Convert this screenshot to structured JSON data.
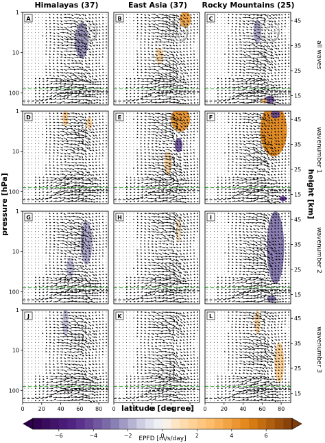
{
  "chart_data": {
    "type": "vector-field-with-contours",
    "columns": [
      "Himalayas (37)",
      "East Asia (37)",
      "Rocky Mountains (25)"
    ],
    "rows": [
      "all waves",
      "wavenumber 1",
      "wavenumber 2",
      "wavenumber 3"
    ],
    "panel_letters": [
      [
        "A",
        "B",
        "C"
      ],
      [
        "D",
        "E",
        "F"
      ],
      [
        "G",
        "H",
        "I"
      ],
      [
        "J",
        "K",
        "L"
      ]
    ],
    "ylabel": "pressure [hPa]",
    "ylabel_right": "height [km]",
    "xlabel": "latitude [degree]",
    "y_scale": "log",
    "ylim_hPa": [
      200,
      1
    ],
    "xlim_deg": [
      0,
      90
    ],
    "x_ticks": [
      "0",
      "20",
      "40",
      "60",
      "80"
    ],
    "y_ticks": [
      "1",
      "10",
      "100"
    ],
    "height_ticks": [
      "45",
      "35",
      "25",
      "15"
    ],
    "colorbar": {
      "label": "EPFD [m/s/day]",
      "range": [
        -7.5,
        7.5
      ],
      "ticks": [
        "−6",
        "−4",
        "−2",
        "0",
        "2",
        "4",
        "6"
      ],
      "colormap": "PuOr_r",
      "negative_color": "#3b0f70",
      "positive_color": "#7f3b08"
    },
    "tropopause_hPa": 80,
    "tropopause_line_color": "#2ca02c",
    "blobs": [
      [
        [
          {
            "lat": 62,
            "p": 5,
            "v": -2.5,
            "rlat": 7,
            "rlogp": 0.45
          }
        ],
        [
          {
            "lat": 48,
            "p": 12,
            "v": 1.5,
            "rlat": 4,
            "rlogp": 0.2
          },
          {
            "lat": 75,
            "p": 1.5,
            "v": 4,
            "rlat": 6,
            "rlogp": 0.2
          }
        ],
        [
          {
            "lat": 55,
            "p": 3,
            "v": -2,
            "rlat": 4,
            "rlogp": 0.3
          },
          {
            "lat": 68,
            "p": 150,
            "v": -4,
            "rlat": 5,
            "rlogp": 0.1
          },
          {
            "lat": 62,
            "p": 160,
            "v": 3,
            "rlat": 3,
            "rlogp": 0.06
          }
        ]
      ],
      [
        [
          {
            "lat": 45,
            "p": 1.5,
            "v": 2,
            "rlat": 3,
            "rlogp": 0.2
          },
          {
            "lat": 70,
            "p": 2,
            "v": 1.5,
            "rlat": 3,
            "rlogp": 0.15
          }
        ],
        [
          {
            "lat": 70,
            "p": 1.6,
            "v": 4.5,
            "rlat": 10,
            "rlogp": 0.3
          },
          {
            "lat": 68,
            "p": 7,
            "v": -4,
            "rlat": 4,
            "rlogp": 0.18
          },
          {
            "lat": 57,
            "p": 20,
            "v": 1.5,
            "rlat": 4,
            "rlogp": 0.3
          }
        ],
        [
          {
            "lat": 72,
            "p": 3,
            "v": 5,
            "rlat": 14,
            "rlogp": 0.65
          },
          {
            "lat": 74,
            "p": 1.2,
            "v": -4,
            "rlat": 5,
            "rlogp": 0.1
          },
          {
            "lat": 82,
            "p": 150,
            "v": -5,
            "rlat": 4,
            "rlogp": 0.06
          }
        ]
      ],
      [
        [
          {
            "lat": 67,
            "p": 6,
            "v": -2,
            "rlat": 6,
            "rlogp": 0.55
          },
          {
            "lat": 50,
            "p": 25,
            "v": -1.5,
            "rlat": 4,
            "rlogp": 0.25
          }
        ],
        [
          {
            "lat": 68,
            "p": 3,
            "v": 0.8,
            "rlat": 3,
            "rlogp": 0.3
          }
        ],
        [
          {
            "lat": 74,
            "p": 8,
            "v": -3,
            "rlat": 9,
            "rlogp": 0.9
          },
          {
            "lat": 70,
            "p": 150,
            "v": -3,
            "rlat": 5,
            "rlogp": 0.08
          }
        ]
      ],
      [
        [
          {
            "lat": 45,
            "p": 2,
            "v": -1.5,
            "rlat": 3,
            "rlogp": 0.35
          }
        ],
        [],
        [
          {
            "lat": 55,
            "p": 2,
            "v": 1.5,
            "rlat": 3,
            "rlogp": 0.3
          },
          {
            "lat": 78,
            "p": 20,
            "v": 1.8,
            "rlat": 5,
            "rlogp": 0.5
          }
        ]
      ]
    ]
  }
}
